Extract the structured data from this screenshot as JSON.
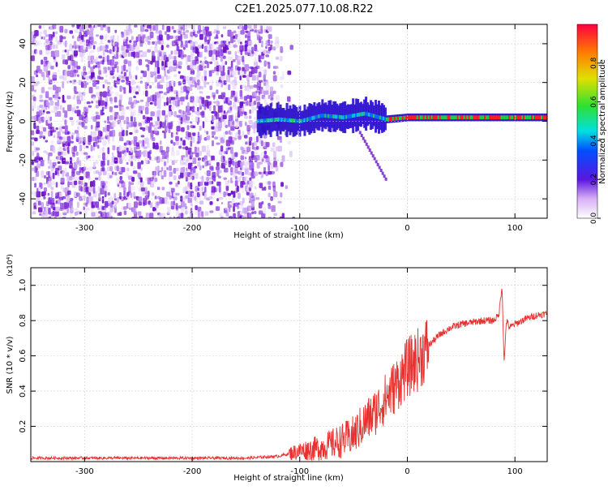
{
  "title": "C2E1.2025.077.10.08.R22",
  "colors": {
    "snr_line": "#e8312f",
    "spectrum_purple": "#7a1fd6",
    "spectrum_light": "#d9b8f5",
    "axis": "#000000"
  },
  "chart_data": [
    {
      "type": "heatmap",
      "name": "spectrogram",
      "xlabel": "Height of straight line (km)",
      "ylabel": "Frequency (Hz)",
      "xlim": [
        -350,
        130
      ],
      "ylim": [
        -50,
        50
      ],
      "xticks": [
        -300,
        -200,
        -100,
        0,
        100
      ],
      "xtick_labels": [
        "-300",
        "-200",
        "-100",
        "0",
        "100"
      ],
      "yticks": [
        -40,
        -20,
        0,
        20,
        40
      ],
      "ytick_labels": [
        "-40",
        "-20",
        "0",
        "20",
        "40"
      ],
      "colorbar": {
        "label": "Normalized spectral amplitude",
        "range": [
          0,
          1
        ],
        "ticks": [
          0.0,
          0.2,
          0.4,
          0.6,
          0.8
        ],
        "tick_labels": [
          "0.0",
          "0.2",
          "0.4",
          "0.6",
          "0.8"
        ]
      },
      "noise_region": {
        "x_from": -350,
        "x_to": -130
      },
      "signal_ridge": {
        "x": [
          -140,
          -120,
          -100,
          -80,
          -60,
          -40,
          -20,
          0,
          20,
          60,
          100,
          130
        ],
        "freq": [
          0,
          1,
          0,
          3,
          2,
          4,
          1,
          2,
          2,
          2,
          2,
          2
        ]
      },
      "grid": true
    },
    {
      "type": "line",
      "name": "snr",
      "xlabel": "Height of straight line (km)",
      "ylabel": "SNR (10 * v/v)",
      "scale_label": "(x10⁴)",
      "xlim": [
        -350,
        130
      ],
      "ylim": [
        0,
        1.1
      ],
      "xticks": [
        -300,
        -200,
        -100,
        0,
        100
      ],
      "xtick_labels": [
        "-300",
        "-200",
        "-100",
        "0",
        "100"
      ],
      "yticks": [
        0.2,
        0.4,
        0.6,
        0.8,
        1.0
      ],
      "ytick_labels": [
        "0.2",
        "0.4",
        "0.6",
        "0.8",
        "1.0"
      ],
      "series": [
        {
          "name": "SNR",
          "x": [
            -350,
            -300,
            -250,
            -200,
            -150,
            -120,
            -100,
            -80,
            -60,
            -50,
            -40,
            -30,
            -20,
            -10,
            0,
            10,
            20,
            30,
            40,
            50,
            60,
            70,
            80,
            85,
            88,
            90,
            92,
            95,
            100,
            110,
            120,
            130
          ],
          "y": [
            0.02,
            0.02,
            0.02,
            0.02,
            0.02,
            0.03,
            0.06,
            0.08,
            0.12,
            0.15,
            0.22,
            0.28,
            0.36,
            0.44,
            0.53,
            0.58,
            0.66,
            0.72,
            0.76,
            0.78,
            0.79,
            0.8,
            0.8,
            0.83,
            1.0,
            0.55,
            0.8,
            0.76,
            0.78,
            0.81,
            0.83,
            0.84
          ]
        }
      ],
      "grid": true
    }
  ]
}
